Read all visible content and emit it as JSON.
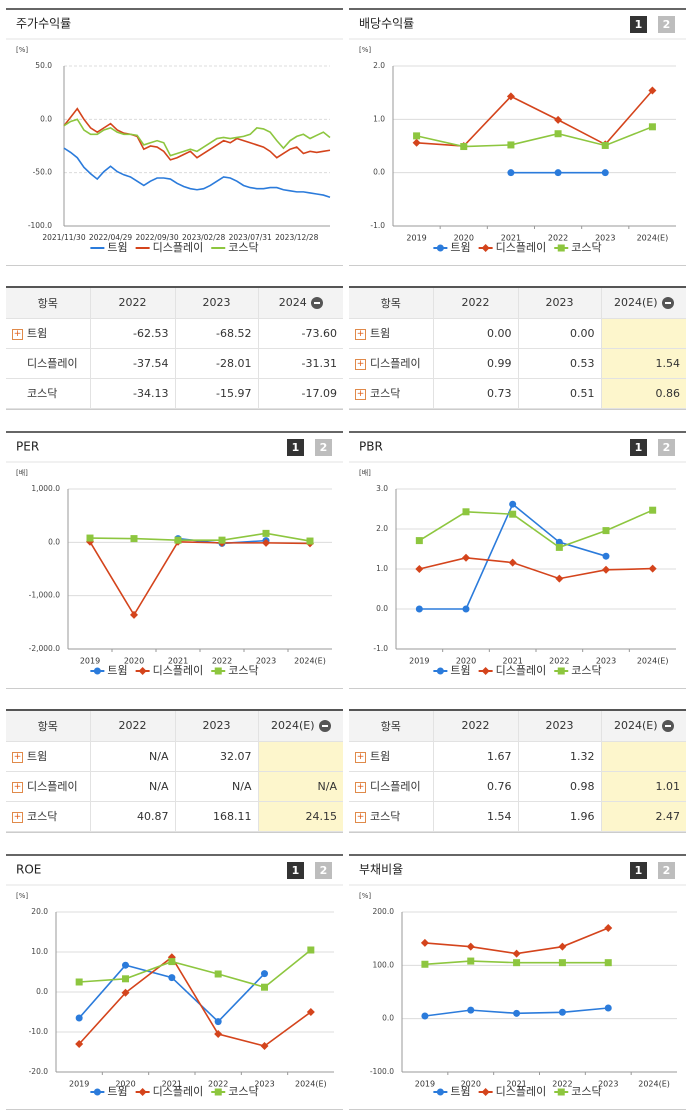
{
  "chart_data": [
    {
      "type": "line",
      "title": "주가수익률",
      "unit": "[%]",
      "categories": [
        "2021/11/30",
        null,
        null,
        null,
        null,
        null,
        null,
        "2022/04/29",
        null,
        null,
        null,
        null,
        null,
        null,
        "2022/09/30",
        null,
        null,
        null,
        null,
        null,
        null,
        "2023/02/28",
        null,
        null,
        null,
        null,
        null,
        null,
        "2023/07/31",
        null,
        null,
        null,
        null,
        null,
        null,
        "2023/12/28",
        null,
        null,
        null,
        null,
        null
      ],
      "ylim": [
        -100,
        50
      ],
      "yticks": [
        {
          "value": -100,
          "label": "-100.0"
        },
        {
          "value": -50,
          "label": "-50.0"
        },
        {
          "value": 0,
          "label": "0.0"
        },
        {
          "value": 50,
          "label": "50.0"
        }
      ],
      "grid": true,
      "markers": false,
      "series": [
        {
          "name": "트윔",
          "color": "#2b7bdb",
          "values": [
            -27,
            -31,
            -36,
            -45,
            -51,
            -56,
            -49,
            -44,
            -49,
            -52,
            -54,
            -58,
            -62,
            -58,
            -55,
            -55,
            -56,
            -60,
            -63,
            -65,
            -66,
            -65,
            -62,
            -58,
            -54,
            -55,
            -58,
            -62,
            -64,
            -65,
            -65,
            -64,
            -64,
            -66,
            -67,
            -68,
            -68,
            -69,
            -70,
            -71,
            -73
          ]
        },
        {
          "name": "디스플레이",
          "color": "#d4441c",
          "values": [
            -6,
            2,
            10,
            0,
            -8,
            -12,
            -8,
            -4,
            -10,
            -13,
            -14,
            -16,
            -28,
            -25,
            -26,
            -30,
            -38,
            -36,
            -33,
            -30,
            -36,
            -32,
            -28,
            -24,
            -20,
            -22,
            -18,
            -20,
            -22,
            -24,
            -26,
            -30,
            -36,
            -32,
            -28,
            -26,
            -32,
            -30,
            -31,
            -30,
            -29
          ]
        },
        {
          "name": "코스닥",
          "color": "#8dc63f",
          "values": [
            -6,
            -2,
            0,
            -10,
            -14,
            -14,
            -10,
            -8,
            -12,
            -14,
            -14,
            -15,
            -24,
            -22,
            -20,
            -22,
            -34,
            -32,
            -30,
            -28,
            -30,
            -26,
            -22,
            -18,
            -17,
            -18,
            -17,
            -16,
            -14,
            -8,
            -9,
            -12,
            -20,
            -27,
            -20,
            -16,
            -14,
            -18,
            -15,
            -12,
            -17
          ]
        }
      ]
    },
    {
      "type": "line",
      "title": "배당수익률",
      "buttons": [
        "1",
        "2"
      ],
      "unit": "[%]",
      "categories": [
        "2019",
        "2020",
        "2021",
        "2022",
        "2023",
        "2024(E)"
      ],
      "ylim": [
        -1,
        2
      ],
      "yticks": [
        {
          "value": -1,
          "label": "-1.0"
        },
        {
          "value": 0,
          "label": "0.0"
        },
        {
          "value": 1,
          "label": "1.0"
        },
        {
          "value": 2,
          "label": "2.0"
        }
      ],
      "grid": true,
      "markers": true,
      "series": [
        {
          "name": "트윔",
          "color": "#2b7bdb",
          "marker": "circle",
          "values": [
            null,
            null,
            0,
            0,
            0,
            null
          ]
        },
        {
          "name": "디스플레이",
          "color": "#d4441c",
          "marker": "diamond",
          "values": [
            0.56,
            0.5,
            1.43,
            0.99,
            0.53,
            1.54
          ]
        },
        {
          "name": "코스닥",
          "color": "#8dc63f",
          "marker": "square",
          "values": [
            0.69,
            0.49,
            0.52,
            0.73,
            0.51,
            0.86
          ]
        }
      ]
    },
    {
      "type": "line",
      "title": "PER",
      "buttons": [
        "1",
        "2"
      ],
      "unit": "[배]",
      "categories": [
        "2019",
        "2020",
        "2021",
        "2022",
        "2023",
        "2024(E)"
      ],
      "ylim": [
        -2000,
        1000
      ],
      "yticks": [
        {
          "value": -2000,
          "label": "-2,000.0"
        },
        {
          "value": -1000,
          "label": "-1,000.0"
        },
        {
          "value": 0,
          "label": "0.0"
        },
        {
          "value": 1000,
          "label": "1,000.0"
        }
      ],
      "grid": true,
      "markers": true,
      "series": [
        {
          "name": "트윔",
          "color": "#2b7bdb",
          "marker": "circle",
          "values": [
            null,
            null,
            70,
            -20,
            32.07,
            null
          ]
        },
        {
          "name": "디스플레이",
          "color": "#d4441c",
          "marker": "diamond",
          "values": [
            10,
            -1360,
            10,
            -10,
            -10,
            -20
          ]
        },
        {
          "name": "코스닥",
          "color": "#8dc63f",
          "marker": "square",
          "values": [
            80,
            70,
            40,
            40.87,
            168.11,
            24.15
          ]
        }
      ]
    },
    {
      "type": "line",
      "title": "PBR",
      "buttons": [
        "1",
        "2"
      ],
      "unit": "[배]",
      "categories": [
        "2019",
        "2020",
        "2021",
        "2022",
        "2023",
        "2024(E)"
      ],
      "ylim": [
        -1,
        3
      ],
      "yticks": [
        {
          "value": -1,
          "label": "-1.0"
        },
        {
          "value": 0,
          "label": "0.0"
        },
        {
          "value": 1,
          "label": "1.0"
        },
        {
          "value": 2,
          "label": "2.0"
        },
        {
          "value": 3,
          "label": "3.0"
        }
      ],
      "grid": true,
      "markers": true,
      "series": [
        {
          "name": "트윔",
          "color": "#2b7bdb",
          "marker": "circle",
          "values": [
            0,
            0,
            2.62,
            1.67,
            1.32,
            null
          ]
        },
        {
          "name": "디스플레이",
          "color": "#d4441c",
          "marker": "diamond",
          "values": [
            1,
            1.28,
            1.16,
            0.76,
            0.98,
            1.01
          ]
        },
        {
          "name": "코스닥",
          "color": "#8dc63f",
          "marker": "square",
          "values": [
            1.71,
            2.43,
            2.37,
            1.54,
            1.96,
            2.47
          ]
        }
      ]
    },
    {
      "type": "line",
      "title": "ROE",
      "buttons": [
        "1",
        "2"
      ],
      "unit": "[%]",
      "categories": [
        "2019",
        "2020",
        "2021",
        "2022",
        "2023",
        "2024(E)"
      ],
      "ylim": [
        -20,
        20
      ],
      "yticks": [
        {
          "value": -20,
          "label": "-20.0"
        },
        {
          "value": -10,
          "label": "-10.0"
        },
        {
          "value": 0,
          "label": "0.0"
        },
        {
          "value": 10,
          "label": "10.0"
        },
        {
          "value": 20,
          "label": "20.0"
        }
      ],
      "grid": true,
      "markers": true,
      "series": [
        {
          "name": "트윔",
          "color": "#2b7bdb",
          "marker": "circle",
          "values": [
            -6.5,
            6.7,
            3.6,
            -7.4,
            4.6,
            null
          ]
        },
        {
          "name": "디스플레이",
          "color": "#d4441c",
          "marker": "diamond",
          "values": [
            -13,
            -0.2,
            8.7,
            -10.5,
            -13.5,
            -5
          ]
        },
        {
          "name": "코스닥",
          "color": "#8dc63f",
          "marker": "square",
          "values": [
            2.5,
            3.3,
            7.6,
            4.5,
            1.2,
            10.5
          ]
        }
      ]
    },
    {
      "type": "line",
      "title": "부채비율",
      "buttons": [
        "1",
        "2"
      ],
      "unit": "[%]",
      "categories": [
        "2019",
        "2020",
        "2021",
        "2022",
        "2023",
        "2024(E)"
      ],
      "ylim": [
        -100,
        200
      ],
      "yticks": [
        {
          "value": -100,
          "label": "-100.0"
        },
        {
          "value": 0,
          "label": "0.0"
        },
        {
          "value": 100,
          "label": "100.0"
        },
        {
          "value": 200,
          "label": "200.0"
        }
      ],
      "grid": true,
      "markers": true,
      "series": [
        {
          "name": "트윔",
          "color": "#2b7bdb",
          "marker": "circle",
          "values": [
            5,
            16,
            10,
            12,
            20,
            null
          ]
        },
        {
          "name": "디스플레이",
          "color": "#d4441c",
          "marker": "diamond",
          "values": [
            142,
            135,
            122,
            135,
            170,
            null
          ]
        },
        {
          "name": "코스닥",
          "color": "#8dc63f",
          "marker": "square",
          "values": [
            102,
            108,
            105,
            105,
            105,
            null
          ]
        }
      ]
    }
  ],
  "tables": [
    {
      "header": [
        "항목",
        "2022",
        "2023",
        "2024"
      ],
      "highlight_last": false,
      "rows": [
        {
          "name": "트윔",
          "expandable": true,
          "values": [
            "-62.53",
            "-68.52",
            "-73.60"
          ]
        },
        {
          "name": "디스플레이",
          "expandable": false,
          "values": [
            "-37.54",
            "-28.01",
            "-31.31"
          ]
        },
        {
          "name": "코스닥",
          "expandable": false,
          "values": [
            "-34.13",
            "-15.97",
            "-17.09"
          ]
        }
      ]
    },
    {
      "header": [
        "항목",
        "2022",
        "2023",
        "2024(E)"
      ],
      "highlight_last": true,
      "rows": [
        {
          "name": "트윔",
          "expandable": true,
          "values": [
            "0.00",
            "0.00",
            null
          ]
        },
        {
          "name": "디스플레이",
          "expandable": true,
          "values": [
            "0.99",
            "0.53",
            "1.54"
          ]
        },
        {
          "name": "코스닥",
          "expandable": true,
          "values": [
            "0.73",
            "0.51",
            "0.86"
          ]
        }
      ]
    },
    {
      "header": [
        "항목",
        "2022",
        "2023",
        "2024(E)"
      ],
      "highlight_last": true,
      "rows": [
        {
          "name": "트윔",
          "expandable": true,
          "values": [
            "N/A",
            "32.07",
            null
          ]
        },
        {
          "name": "디스플레이",
          "expandable": true,
          "values": [
            "N/A",
            "N/A",
            "N/A"
          ]
        },
        {
          "name": "코스닥",
          "expandable": true,
          "values": [
            "40.87",
            "168.11",
            "24.15"
          ]
        }
      ]
    },
    {
      "header": [
        "항목",
        "2022",
        "2023",
        "2024(E)"
      ],
      "highlight_last": true,
      "rows": [
        {
          "name": "트윔",
          "expandable": true,
          "values": [
            "1.67",
            "1.32",
            null
          ]
        },
        {
          "name": "디스플레이",
          "expandable": true,
          "values": [
            "0.76",
            "0.98",
            "1.01"
          ]
        },
        {
          "name": "코스닥",
          "expandable": true,
          "values": [
            "1.54",
            "1.96",
            "2.47"
          ]
        }
      ]
    }
  ]
}
